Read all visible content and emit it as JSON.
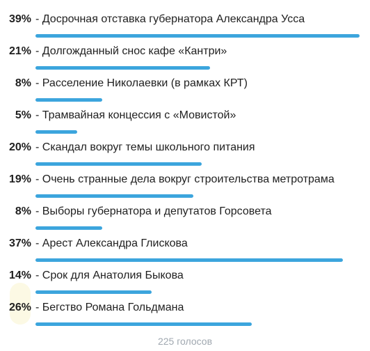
{
  "poll": {
    "options": [
      {
        "percent_label": "39%",
        "text": "- Досрочная отставка губернатора Александра Усса",
        "percent": 39
      },
      {
        "percent_label": "21%",
        "text": "- Долгожданный снос кафе «Кантри»",
        "percent": 21
      },
      {
        "percent_label": "8%",
        "text": "- Расселение Николаевки (в рамках КРТ)",
        "percent": 8
      },
      {
        "percent_label": "5%",
        "text": "- Трамвайная концессия с «Мовистой»",
        "percent": 5
      },
      {
        "percent_label": "20%",
        "text": "- Скандал вокруг темы школьного питания",
        "percent": 20
      },
      {
        "percent_label": "19%",
        "text": "- Очень странные дела вокруг строительства метротрама",
        "percent": 19
      },
      {
        "percent_label": "8%",
        "text": "- Выборы губернатора и депутатов Горсовета",
        "percent": 8
      },
      {
        "percent_label": "37%",
        "text": "- Арест Александра Глискова",
        "percent": 37
      },
      {
        "percent_label": "14%",
        "text": "- Срок для Анатолия Быкова",
        "percent": 14
      },
      {
        "percent_label": "26%",
        "text": "- Бегство Романа Гольдмана",
        "percent": 26
      }
    ],
    "total_votes": "225 голосов",
    "bar_color": "#3ca5dd"
  }
}
